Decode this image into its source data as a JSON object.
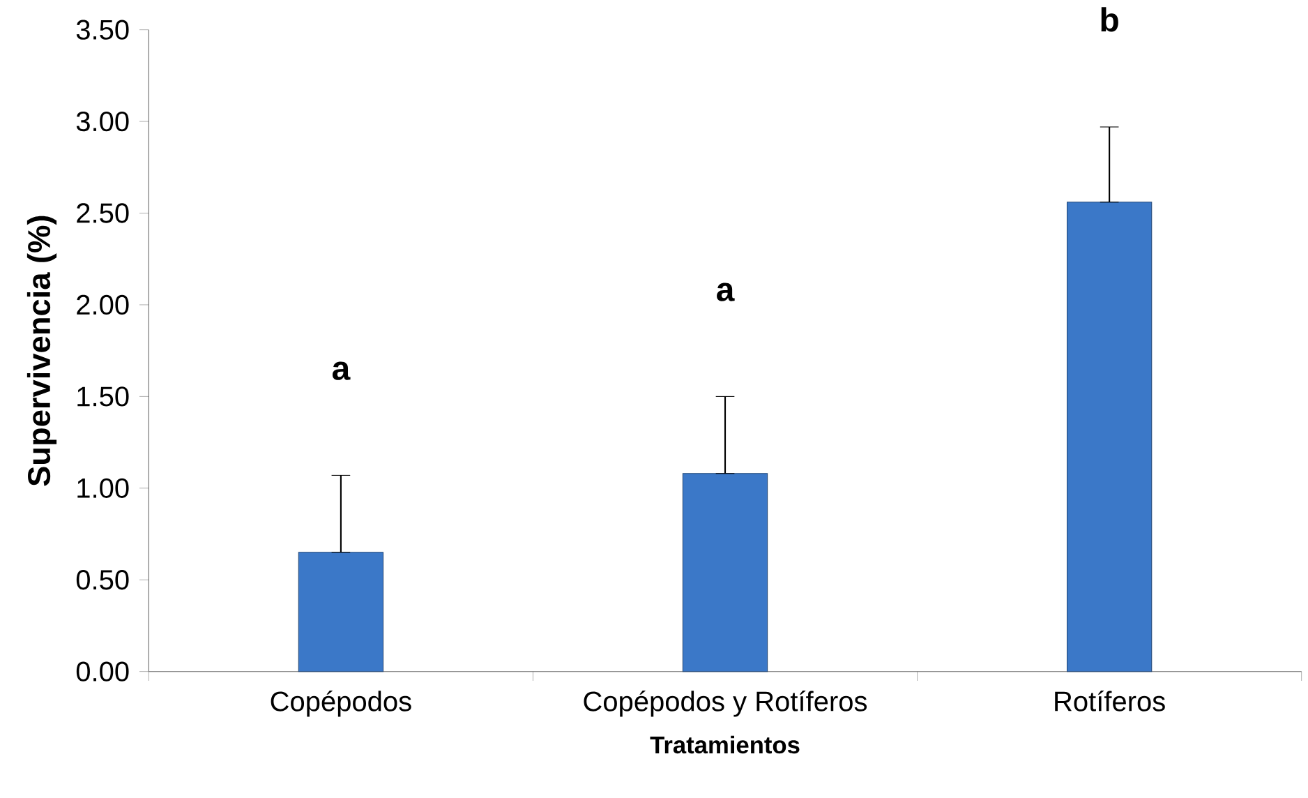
{
  "chart_data": {
    "type": "bar",
    "xlabel": "Tratamientos",
    "ylabel": "Supervivencia (%)",
    "categories": [
      "Copépodos",
      "Copépodos y Rotíferos",
      "Rotíferos"
    ],
    "values": [
      0.65,
      1.08,
      2.56
    ],
    "errors": [
      [
        0.65,
        1.07
      ],
      [
        1.08,
        1.5
      ],
      [
        2.56,
        2.97
      ]
    ],
    "color": "#3b78c8",
    "ylim": [
      0,
      3.5
    ],
    "yticks": [
      {
        "value": 0,
        "label": "0.00"
      },
      {
        "value": 0.5,
        "label": "0.50"
      },
      {
        "value": 1,
        "label": "1.00"
      },
      {
        "value": 1.5,
        "label": "1.50"
      },
      {
        "value": 2,
        "label": "2.00"
      },
      {
        "value": 2.5,
        "label": "2.50"
      },
      {
        "value": 3,
        "label": "3.00"
      },
      {
        "value": 3.5,
        "label": "3.50"
      }
    ],
    "annotations": [
      "a",
      "a",
      "b"
    ]
  }
}
